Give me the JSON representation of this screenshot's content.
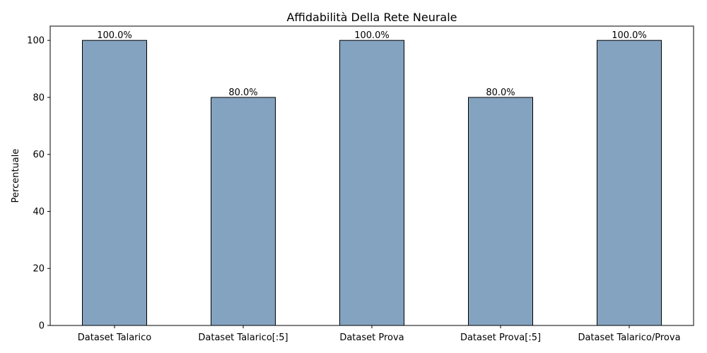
{
  "chart_data": {
    "type": "bar",
    "title": "Affidabilità Della Rete Neurale",
    "xlabel": "",
    "ylabel": "Percentuale",
    "categories": [
      "Dataset Talarico",
      "Dataset Talarico[:5]",
      "Dataset Prova",
      "Dataset Prova[:5]",
      "Dataset Talarico/Prova"
    ],
    "values": [
      100,
      80,
      100,
      80,
      100
    ],
    "value_labels": [
      "100.0%",
      "80.0%",
      "100.0%",
      "80.0%",
      "100.0%"
    ],
    "ylim": [
      0,
      105
    ],
    "yticks": [
      0,
      20,
      40,
      60,
      80,
      100
    ],
    "ytick_labels": [
      "0",
      "20",
      "40",
      "60",
      "80",
      "100"
    ],
    "grid": false,
    "bar_color": "#84a3c0",
    "edge_color": "#000000"
  }
}
